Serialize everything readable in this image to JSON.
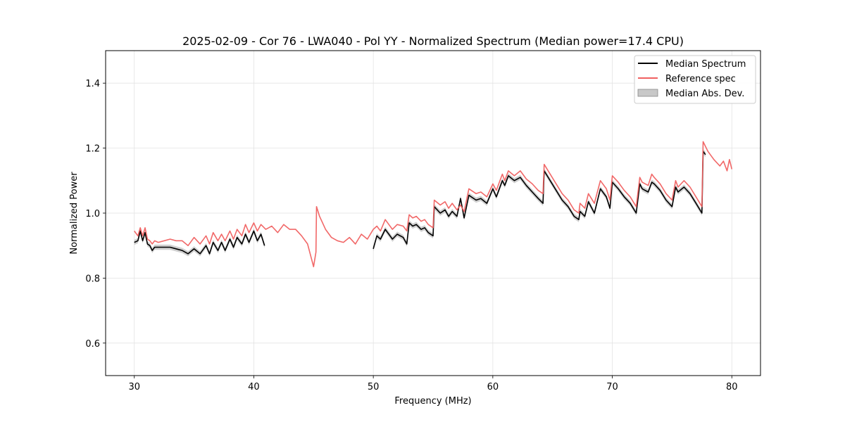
{
  "chart_data": {
    "type": "line",
    "title": "2025-02-09 - Cor 76 - LWA040 - Pol YY - Normalized Spectrum (Median power=17.4 CPU)",
    "xlabel": "Frequency (MHz)",
    "ylabel": "Normalized Power",
    "xlim": [
      27.6,
      82.4
    ],
    "ylim": [
      0.5,
      1.5
    ],
    "xticks": [
      30,
      40,
      50,
      60,
      70,
      80
    ],
    "yticks": [
      0.6,
      0.8,
      1.0,
      1.2,
      1.4
    ],
    "xtick_labels": [
      "30",
      "40",
      "50",
      "60",
      "70",
      "80"
    ],
    "ytick_labels": [
      "0.6",
      "0.8",
      "1.0",
      "1.2",
      "1.4"
    ],
    "grid": true,
    "legend_position": "top-right",
    "legend": [
      "Median Spectrum",
      "Reference spec",
      "Median Abs. Dev."
    ],
    "colors": {
      "median": "#000000",
      "reference": "#f06060",
      "mad_fill": "#b0b0b0"
    },
    "series": [
      {
        "name": "Reference spec",
        "x": [
          30.0,
          30.3,
          30.5,
          30.7,
          30.9,
          31.1,
          31.3,
          31.5,
          31.7,
          32.0,
          32.5,
          33.0,
          33.5,
          34.0,
          34.5,
          35.0,
          35.5,
          36.0,
          36.3,
          36.6,
          37.0,
          37.3,
          37.6,
          38.0,
          38.3,
          38.6,
          39.0,
          39.3,
          39.6,
          40.0,
          40.3,
          40.6,
          41.0,
          41.5,
          42.0,
          42.5,
          43.0,
          43.5,
          44.0,
          44.5,
          45.0,
          45.2,
          45.25,
          45.5,
          46.0,
          46.5,
          47.0,
          47.5,
          48.0,
          48.5,
          49.0,
          49.5,
          50.0,
          50.3,
          50.6,
          51.0,
          51.3,
          51.6,
          52.0,
          52.5,
          52.8,
          53.0,
          53.3,
          53.6,
          54.0,
          54.3,
          54.6,
          55.0,
          55.1,
          55.6,
          56.0,
          56.3,
          56.6,
          57.0,
          57.3,
          57.6,
          58.0,
          58.2,
          58.6,
          59.0,
          59.5,
          60.0,
          60.3,
          60.8,
          61.0,
          61.3,
          61.8,
          62.3,
          62.8,
          63.3,
          63.8,
          64.2,
          64.3,
          64.8,
          65.3,
          65.8,
          66.3,
          66.8,
          67.2,
          67.3,
          67.7,
          68.0,
          68.5,
          69.0,
          69.5,
          69.8,
          70.0,
          70.5,
          71.0,
          71.5,
          72.0,
          72.3,
          72.5,
          73.0,
          73.3,
          73.5,
          74.0,
          74.5,
          75.0,
          75.3,
          75.5,
          76.0,
          76.5,
          77.0,
          77.5,
          77.6,
          78.0,
          78.5,
          79.0,
          79.3,
          79.6,
          79.8,
          80.0
        ],
        "values": [
          0.945,
          0.93,
          0.955,
          0.93,
          0.955,
          0.92,
          0.915,
          0.905,
          0.915,
          0.91,
          0.915,
          0.92,
          0.915,
          0.915,
          0.9,
          0.925,
          0.905,
          0.93,
          0.905,
          0.94,
          0.915,
          0.935,
          0.915,
          0.945,
          0.92,
          0.95,
          0.93,
          0.965,
          0.94,
          0.97,
          0.945,
          0.965,
          0.95,
          0.96,
          0.94,
          0.965,
          0.95,
          0.95,
          0.93,
          0.905,
          0.835,
          0.88,
          1.02,
          0.99,
          0.95,
          0.925,
          0.915,
          0.91,
          0.925,
          0.905,
          0.935,
          0.92,
          0.95,
          0.96,
          0.945,
          0.98,
          0.965,
          0.95,
          0.965,
          0.96,
          0.945,
          0.995,
          0.985,
          0.99,
          0.975,
          0.98,
          0.965,
          0.955,
          1.04,
          1.025,
          1.035,
          1.015,
          1.03,
          1.01,
          1.025,
          1.005,
          1.075,
          1.07,
          1.06,
          1.065,
          1.05,
          1.09,
          1.07,
          1.12,
          1.1,
          1.13,
          1.115,
          1.13,
          1.105,
          1.09,
          1.07,
          1.06,
          1.15,
          1.12,
          1.09,
          1.06,
          1.04,
          1.01,
          1.0,
          1.03,
          1.015,
          1.06,
          1.03,
          1.1,
          1.075,
          1.04,
          1.115,
          1.095,
          1.07,
          1.05,
          1.02,
          1.11,
          1.095,
          1.085,
          1.12,
          1.11,
          1.09,
          1.06,
          1.04,
          1.1,
          1.08,
          1.1,
          1.08,
          1.05,
          1.02,
          1.22,
          1.19,
          1.165,
          1.145,
          1.16,
          1.13,
          1.165,
          1.135
        ]
      },
      {
        "name": "Median Spectrum",
        "x": [
          30.0,
          30.3,
          30.5,
          30.7,
          30.9,
          31.1,
          31.3,
          31.5,
          31.7,
          32.0,
          32.5,
          33.0,
          33.5,
          34.0,
          34.5,
          35.0,
          35.5,
          36.0,
          36.3,
          36.6,
          37.0,
          37.3,
          37.6,
          38.0,
          38.3,
          38.6,
          39.0,
          39.3,
          39.6,
          40.0,
          40.3,
          40.6,
          40.9,
          null,
          50.0,
          50.3,
          50.6,
          51.0,
          51.3,
          51.6,
          52.0,
          52.5,
          52.8,
          53.0,
          53.3,
          53.6,
          54.0,
          54.3,
          54.6,
          55.0,
          55.1,
          55.6,
          56.0,
          56.3,
          56.6,
          57.0,
          57.3,
          57.6,
          58.0,
          58.2,
          58.6,
          59.0,
          59.5,
          60.0,
          60.3,
          60.8,
          61.0,
          61.3,
          61.8,
          62.3,
          62.8,
          63.3,
          63.8,
          64.2,
          64.3,
          64.8,
          65.3,
          65.8,
          66.3,
          66.8,
          67.2,
          67.3,
          67.7,
          68.0,
          68.5,
          69.0,
          69.5,
          69.8,
          70.0,
          70.5,
          71.0,
          71.5,
          72.0,
          72.3,
          72.5,
          73.0,
          73.3,
          73.5,
          74.0,
          74.5,
          75.0,
          75.3,
          75.5,
          76.0,
          76.5,
          77.0,
          77.5,
          77.6,
          77.8
        ],
        "values": [
          0.91,
          0.915,
          0.945,
          0.915,
          0.94,
          0.905,
          0.9,
          0.885,
          0.895,
          0.895,
          0.895,
          0.895,
          0.89,
          0.885,
          0.875,
          0.89,
          0.875,
          0.9,
          0.875,
          0.91,
          0.885,
          0.91,
          0.885,
          0.92,
          0.895,
          0.925,
          0.905,
          0.935,
          0.91,
          0.945,
          0.915,
          0.935,
          0.9,
          null,
          0.89,
          0.93,
          0.92,
          0.95,
          0.935,
          0.92,
          0.935,
          0.925,
          0.905,
          0.97,
          0.96,
          0.965,
          0.95,
          0.955,
          0.94,
          0.93,
          1.02,
          1.0,
          1.01,
          0.99,
          1.005,
          0.99,
          1.045,
          0.985,
          1.055,
          1.05,
          1.04,
          1.045,
          1.03,
          1.075,
          1.05,
          1.1,
          1.085,
          1.115,
          1.1,
          1.11,
          1.085,
          1.065,
          1.045,
          1.03,
          1.13,
          1.1,
          1.07,
          1.04,
          1.02,
          0.99,
          0.98,
          1.005,
          0.99,
          1.035,
          1.0,
          1.075,
          1.05,
          1.015,
          1.095,
          1.075,
          1.05,
          1.03,
          1.0,
          1.09,
          1.075,
          1.065,
          1.095,
          1.09,
          1.07,
          1.04,
          1.02,
          1.08,
          1.065,
          1.08,
          1.06,
          1.03,
          1.0,
          1.19,
          1.18
        ]
      }
    ],
    "mad_halfwidth": 0.008
  }
}
